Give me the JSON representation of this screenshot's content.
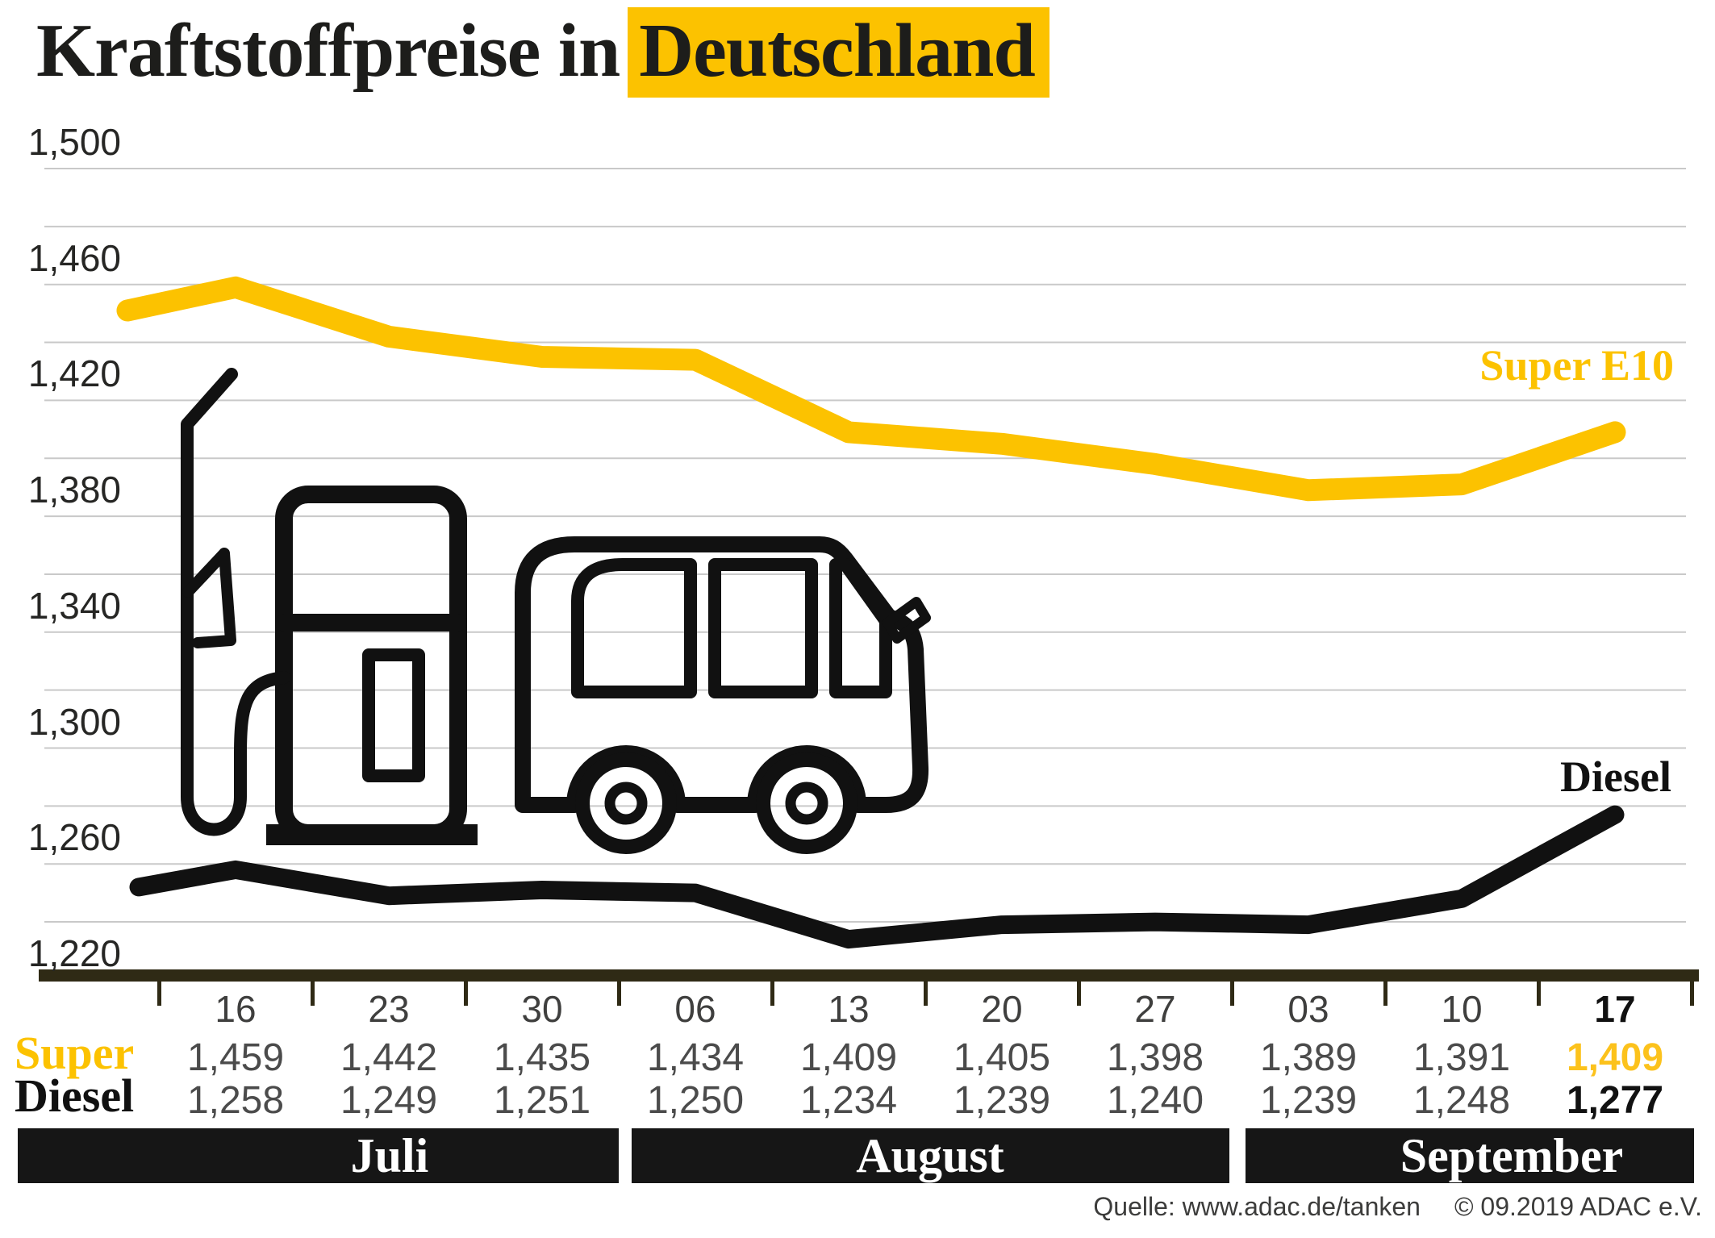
{
  "title": {
    "prefix": "Kraftstoffpreise in",
    "highlight": "Deutschland"
  },
  "chart_data": {
    "type": "line",
    "title": "Kraftstoffpreise in Deutschland",
    "categories": [
      "16",
      "23",
      "30",
      "06",
      "13",
      "20",
      "27",
      "03",
      "10",
      "17"
    ],
    "series": [
      {
        "name": "Super E10",
        "color": "#fcc200",
        "values": [
          1.459,
          1.442,
          1.435,
          1.434,
          1.409,
          1.405,
          1.398,
          1.389,
          1.391,
          1.409
        ]
      },
      {
        "name": "Diesel",
        "color": "#111111",
        "values": [
          1.258,
          1.249,
          1.251,
          1.25,
          1.234,
          1.239,
          1.24,
          1.239,
          1.248,
          1.277
        ]
      }
    ],
    "lead_in_estimated": [
      {
        "series": "Super E10",
        "value": 1.451
      },
      {
        "series": "Diesel",
        "value": 1.252
      }
    ],
    "y_axis": {
      "min": 1.22,
      "max": 1.5,
      "grid_step": 0.02,
      "label_step": 0.04,
      "labels": [
        "1,500",
        "1,460",
        "1,420",
        "1,380",
        "1,340",
        "1,300",
        "1,260",
        "1,220"
      ]
    },
    "x_axis": {
      "months": [
        {
          "label": "Juli",
          "dates": [
            "16",
            "23",
            "30"
          ]
        },
        {
          "label": "August",
          "dates": [
            "06",
            "13",
            "20",
            "27"
          ]
        },
        {
          "label": "September",
          "dates": [
            "03",
            "10",
            "17"
          ]
        }
      ]
    },
    "legend_position": "right, next to line ends",
    "grid": true
  },
  "table": {
    "rows": [
      {
        "label": "Super",
        "values": [
          "1,459",
          "1,442",
          "1,435",
          "1,434",
          "1,409",
          "1,405",
          "1,398",
          "1,389",
          "1,391",
          "1,409"
        ]
      },
      {
        "label": "Diesel",
        "values": [
          "1,258",
          "1,249",
          "1,251",
          "1,250",
          "1,234",
          "1,239",
          "1,240",
          "1,239",
          "1,248",
          "1,277"
        ]
      }
    ]
  },
  "months_bar": [
    {
      "label": "Juli"
    },
    {
      "label": "August"
    },
    {
      "label": "September"
    }
  ],
  "source": {
    "quelle": "Quelle: www.adac.de/tanken",
    "copyright": "© 09.2019  ADAC e.V."
  },
  "colors": {
    "accent_yellow": "#fcc200",
    "line_black": "#111111",
    "grid": "#c9c9c9",
    "axis": "#2f2a15",
    "band_black": "#161616",
    "value_gray": "#4b4b4b"
  },
  "icons": [
    "fuel-pump-icon",
    "car-icon"
  ]
}
